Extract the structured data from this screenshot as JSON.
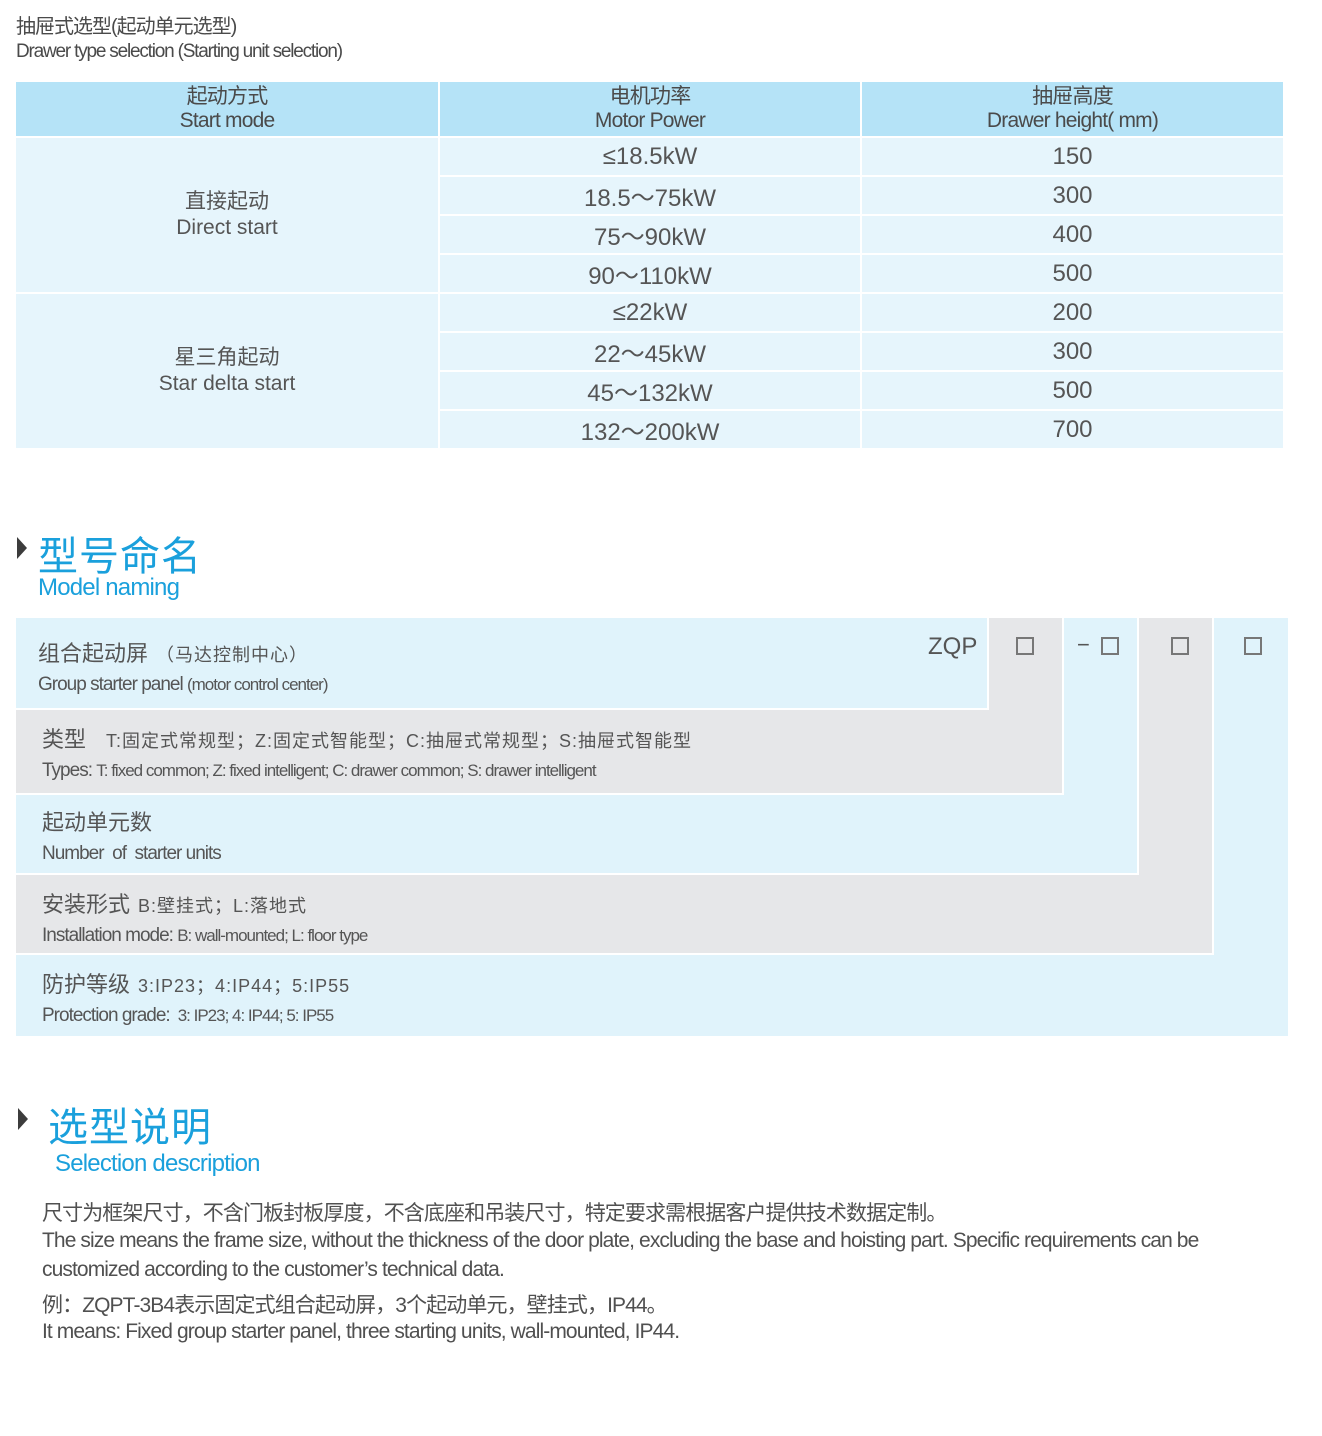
{
  "header": {
    "title_cn": "抽屉式选型(起动单元选型)",
    "title_en": "Drawer type selection (Starting unit selection)"
  },
  "table": {
    "columns": [
      {
        "cn": "起动方式",
        "en": "Start mode"
      },
      {
        "cn": "电机功率",
        "en": "Motor Power"
      },
      {
        "cn": "抽屉高度",
        "en": "Drawer height( mm)"
      }
    ],
    "groups": [
      {
        "cn": "直接起动",
        "en": "Direct start",
        "rows": [
          [
            "≤18.5kW",
            "150"
          ],
          [
            "18.5～75kW",
            "300"
          ],
          [
            "75～90kW",
            "400"
          ],
          [
            "90～110kW",
            "500"
          ]
        ]
      },
      {
        "cn": "星三角起动",
        "en": "Star delta start",
        "rows": [
          [
            "≤22kW",
            "200"
          ],
          [
            "22～45kW",
            "300"
          ],
          [
            "45～132kW",
            "500"
          ],
          [
            "132～200kW",
            "700"
          ]
        ]
      }
    ]
  },
  "model": {
    "title_cn": "型号命名",
    "title_en": "Model naming",
    "prefix": "ZQP",
    "dash": "−",
    "rows": [
      {
        "cn": "组合起动屏",
        "cn_note": "（马达控制中心）",
        "en": "Group starter panel",
        "en_note": "(motor control center)"
      },
      {
        "cn": "类型",
        "cn_note": "T:固定式常规型；Z:固定式智能型；C:抽屉式常规型；S:抽屉式智能型",
        "en": "Types:",
        "en_note": "T: fixed common; Z: fixed intelligent; C: drawer common; S: drawer intelligent"
      },
      {
        "cn": "起动单元数",
        "cn_note": "",
        "en": "Number  of  starter units",
        "en_note": ""
      },
      {
        "cn": "安装形式",
        "cn_note": "B:壁挂式；L:落地式",
        "en": "Installation mode:",
        "en_note": "B: wall-mounted; L: floor type"
      },
      {
        "cn": "防护等级",
        "cn_note": "3:IP23；4:IP44；5:IP55",
        "en": "Protection grade:",
        "en_note": " 3: IP23; 4: IP44; 5: IP55"
      }
    ]
  },
  "selection": {
    "title_cn": "选型说明",
    "title_en": "Selection description",
    "lines": [
      "尺寸为框架尺寸，不含门板封板厚度，不含底座和吊装尺寸，特定要求需根据客户提供技术数据定制。",
      "The size means the frame size, without the thickness of the door plate, excluding the base and hoisting part. Specific requirements can be",
      "customized according to the customer’s technical data.",
      "例：ZQPT-3B4表示固定式组合起动屏，3个起动单元，壁挂式，IP44。",
      "It means: Fixed group starter panel, three starting units, wall-mounted, IP44."
    ]
  },
  "colors": {
    "accent": "#1aa0dc",
    "header_bg": "#b5e3f7",
    "cell_bg": "#e6f5fc",
    "grey": "#e6e7e9"
  }
}
